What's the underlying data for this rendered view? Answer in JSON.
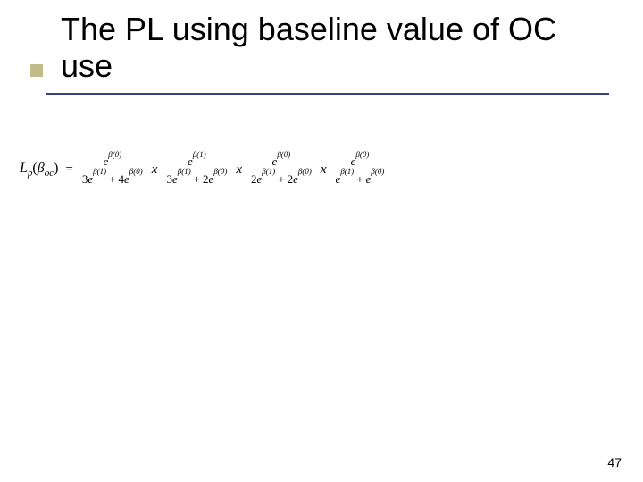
{
  "title": "The PL using baseline value of OC use",
  "page_number": "47",
  "accent_color": "#c2bc8a",
  "rule_color": "#3a3e8f",
  "lhs": {
    "func": "L",
    "func_sub": "p",
    "arg_beta": "β",
    "arg_sub": "oc"
  },
  "equals": "=",
  "separator": "x",
  "fractions": [
    {
      "num": {
        "beta_arg": "0"
      },
      "den": [
        {
          "coef": "3",
          "beta_arg": "1"
        },
        {
          "coef": "4",
          "beta_arg": "0"
        }
      ]
    },
    {
      "num": {
        "beta_arg": "1"
      },
      "den": [
        {
          "coef": "3",
          "beta_arg": "1"
        },
        {
          "coef": "2",
          "beta_arg": "0"
        }
      ]
    },
    {
      "num": {
        "beta_arg": "0"
      },
      "den": [
        {
          "coef": "2",
          "beta_arg": "1"
        },
        {
          "coef": "2",
          "beta_arg": "0"
        }
      ]
    },
    {
      "num": {
        "beta_arg": "0"
      },
      "den": [
        {
          "coef": "",
          "beta_arg": "1"
        },
        {
          "coef": "",
          "beta_arg": "0"
        }
      ]
    }
  ]
}
